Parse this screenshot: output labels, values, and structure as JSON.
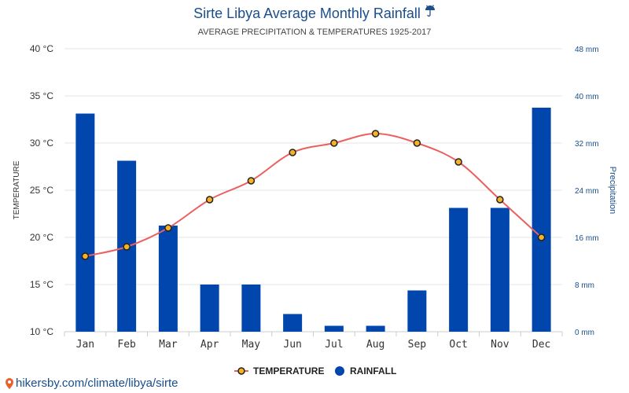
{
  "header": {
    "title": "Sirte Libya Average Monthly Rainfall",
    "title_icon": "umbrella-icon",
    "subtitle": "AVERAGE PRECIPITATION & TEMPERATURES 1925-2017"
  },
  "footer": {
    "link_text": "hikersby.com/climate/libya/sirte",
    "icon": "location-pin-icon"
  },
  "colors": {
    "bar": "#0046ad",
    "line": "#ec5f5f",
    "marker_fill": "#f5b324",
    "marker_stroke": "#222222",
    "grid": "#e6e6e6",
    "axis_text": "#333333",
    "right_axis_text": "#1a4e8c"
  },
  "chart_data": {
    "type": "bar",
    "categories": [
      "Jan",
      "Feb",
      "Mar",
      "Apr",
      "May",
      "Jun",
      "Jul",
      "Aug",
      "Sep",
      "Oct",
      "Nov",
      "Dec"
    ],
    "series": [
      {
        "name": "RAINFALL",
        "type": "bar",
        "axis": "right",
        "values": [
          37,
          29,
          18,
          8,
          8,
          3,
          1,
          1,
          7,
          21,
          21,
          38
        ]
      },
      {
        "name": "TEMPERATURE",
        "type": "line",
        "axis": "left",
        "values": [
          18,
          19,
          21,
          24,
          26,
          29,
          30,
          31,
          30,
          28,
          24,
          20
        ]
      }
    ],
    "ylabel": "TEMPERATURE",
    "y2label": "Precipitation",
    "ylim": [
      10,
      40
    ],
    "y2lim": [
      0,
      48
    ],
    "y_ticks": [
      "10 °C",
      "15 °C",
      "20 °C",
      "25 °C",
      "30 °C",
      "35 °C",
      "40 °C"
    ],
    "y2_ticks": [
      "0 mm",
      "8 mm",
      "16 mm",
      "24 mm",
      "32 mm",
      "40 mm",
      "48 mm"
    ],
    "grid": true,
    "legend": {
      "position": "bottom",
      "entries": [
        "TEMPERATURE",
        "RAINFALL"
      ]
    }
  }
}
